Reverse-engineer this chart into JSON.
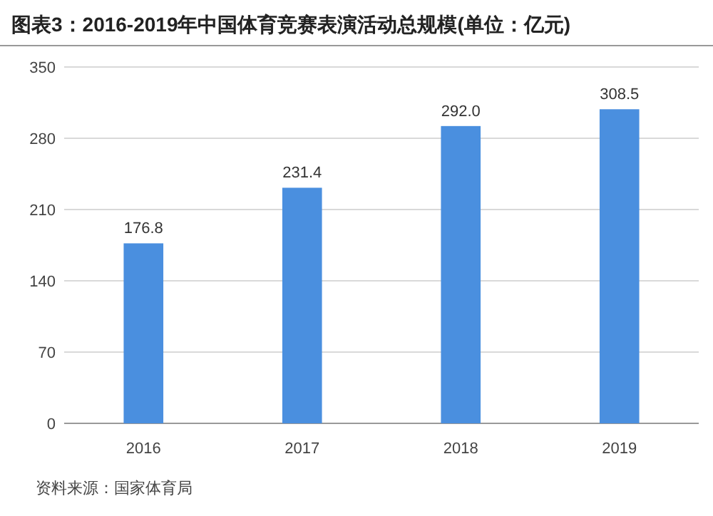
{
  "chart_data": {
    "type": "bar",
    "title": "图表3：2016-2019年中国体育竞赛表演活动总规模(单位：亿元)",
    "categories": [
      "2016",
      "2017",
      "2018",
      "2019"
    ],
    "values": [
      176.8,
      231.4,
      292.0,
      308.5
    ],
    "value_labels": [
      "176.8",
      "231.4",
      "292.0",
      "308.5"
    ],
    "color": "#4a8fdf",
    "ylim": [
      0,
      350
    ],
    "yticks": [
      0,
      70,
      140,
      210,
      280,
      350
    ],
    "grid": "y",
    "annotations": [
      "资料来源：国家体育局"
    ]
  }
}
